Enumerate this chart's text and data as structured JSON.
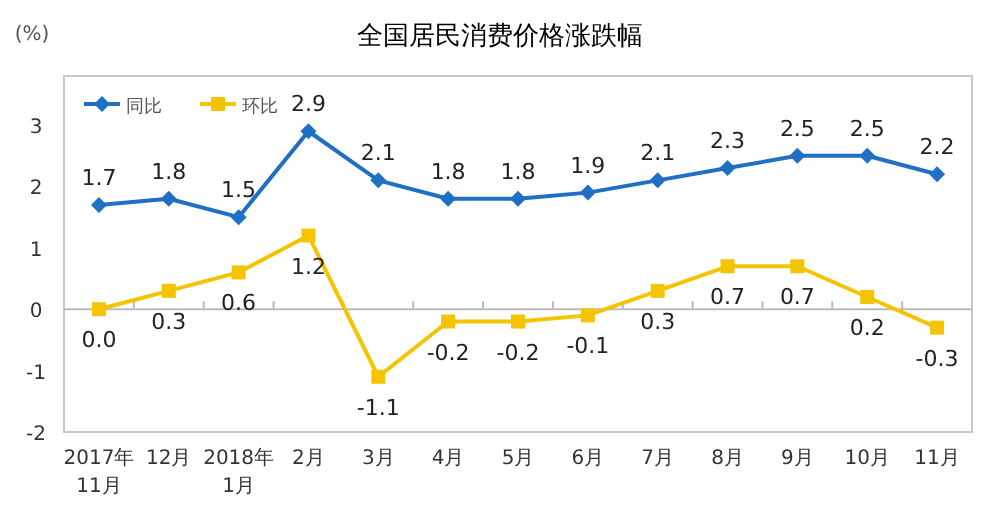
{
  "chart_data": {
    "type": "line",
    "title": "全国居民消费价格涨跌幅",
    "ylabel": "(%)",
    "categories": [
      "2017年\n11月",
      "12月",
      "2018年\n1月",
      "2月",
      "3月",
      "4月",
      "5月",
      "6月",
      "7月",
      "8月",
      "9月",
      "10月",
      "11月"
    ],
    "series": [
      {
        "name": "同比",
        "color": "#1f6fc5",
        "marker": "diamond",
        "values": [
          1.7,
          1.8,
          1.5,
          2.9,
          2.1,
          1.8,
          1.8,
          1.9,
          2.1,
          2.3,
          2.5,
          2.5,
          2.2
        ],
        "value_labels": [
          "1.7",
          "1.8",
          "1.5",
          "2.9",
          "2.1",
          "1.8",
          "1.8",
          "1.9",
          "2.1",
          "2.3",
          "2.5",
          "2.5",
          "2.2"
        ]
      },
      {
        "name": "环比",
        "color": "#f5c400",
        "marker": "square",
        "values": [
          0.0,
          0.3,
          0.6,
          1.2,
          -1.1,
          -0.2,
          -0.2,
          -0.1,
          0.3,
          0.7,
          0.7,
          0.2,
          -0.3
        ],
        "value_labels": [
          "0.0",
          "0.3",
          "0.6",
          "1.2",
          "-1.1",
          "-0.2",
          "-0.2",
          "-0.1",
          "0.3",
          "0.7",
          "0.7",
          "0.2",
          "-0.3"
        ]
      }
    ],
    "ylim": [
      -2,
      3.8
    ],
    "yticks": [
      -2,
      -1,
      0,
      1,
      2,
      3
    ],
    "legend": "top left"
  }
}
